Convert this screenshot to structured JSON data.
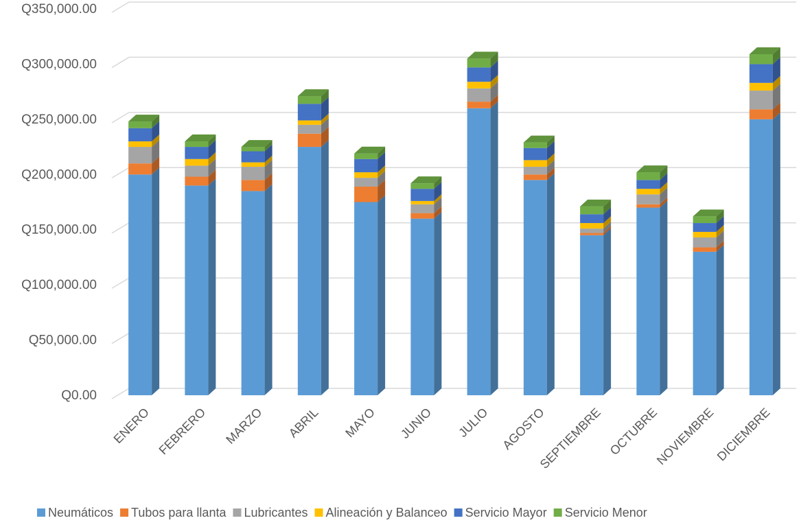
{
  "chart_data": {
    "type": "bar",
    "stacked": true,
    "three_d": true,
    "categories": [
      "ENERO",
      "FEBRERO",
      "MARZO",
      "ABRIL",
      "MAYO",
      "JUNIO",
      "JULIO",
      "AGOSTO",
      "SEPTIEMBRE",
      "OCTUBRE",
      "NOVIEMBRE",
      "DICIEMBRE"
    ],
    "series": [
      {
        "name": "Neumáticos",
        "color": "#5B9BD5",
        "values": [
          200000,
          190000,
          185000,
          225000,
          175000,
          160000,
          260000,
          195000,
          145000,
          170000,
          130000,
          250000
        ]
      },
      {
        "name": "Tubos para llanta",
        "color": "#ED7D31",
        "values": [
          10000,
          8000,
          10000,
          12000,
          14000,
          5000,
          6000,
          5000,
          2000,
          3000,
          4000,
          9000
        ]
      },
      {
        "name": "Lubricantes",
        "color": "#A5A5A5",
        "values": [
          15000,
          10000,
          12000,
          8000,
          8000,
          8000,
          12000,
          7000,
          4000,
          9000,
          9000,
          17000
        ]
      },
      {
        "name": "Alineación y Balanceo",
        "color": "#FFC000",
        "values": [
          5000,
          6000,
          4000,
          4000,
          5000,
          3000,
          6000,
          6000,
          5000,
          5000,
          5000,
          7000
        ]
      },
      {
        "name": "Servicio Mayor",
        "color": "#4472C4",
        "values": [
          12000,
          11000,
          10000,
          15000,
          12000,
          11000,
          13000,
          11000,
          8000,
          8000,
          8000,
          17000
        ]
      },
      {
        "name": "Servicio Menor",
        "color": "#70AD47",
        "values": [
          6000,
          5000,
          4000,
          7000,
          5000,
          5000,
          8000,
          5000,
          7000,
          7000,
          6000,
          9000
        ]
      }
    ],
    "y_ticks": [
      "Q0.00",
      "Q50,000.00",
      "Q100,000.00",
      "Q150,000.00",
      "Q200,000.00",
      "Q250,000.00",
      "Q300,000.00",
      "Q350,000.00"
    ],
    "ylim": [
      0,
      350000
    ],
    "grid": true,
    "legend_position": "bottom"
  }
}
